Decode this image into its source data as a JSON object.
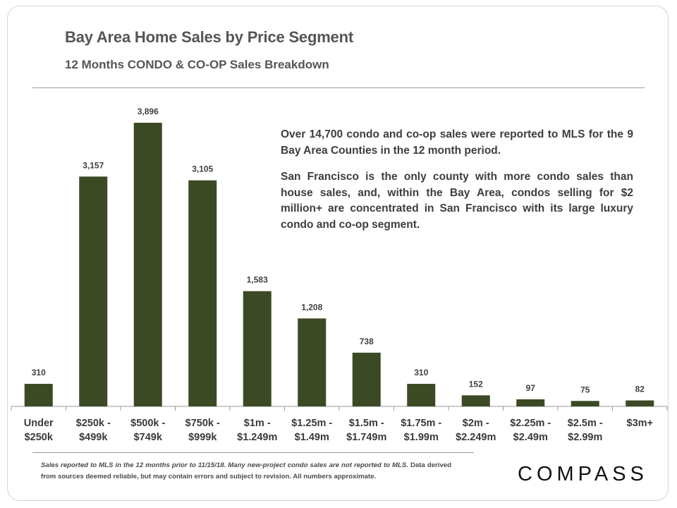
{
  "title": "Bay Area Home Sales by Price Segment",
  "subtitle": "12 Months CONDO & CO-OP Sales Breakdown",
  "annotation": {
    "paragraph1": "Over 14,700 condo and co-op sales were reported to MLS for the 9 Bay Area Counties in the 12 month period.",
    "paragraph2": "San Francisco is the only county with more condo sales than house sales, and, within the Bay Area, condos selling for $2 million+ are concentrated in San Francisco with its large luxury condo and co-op segment."
  },
  "footnote": {
    "italic_part": "Sales reported to MLS in the 12 months prior to 11/15/18. Many new-project condo sales are not reported to MLS.",
    "rest": " Data derived from sources deemed reliable, but may contain errors and subject to revision. All numbers approximate."
  },
  "logo": "COMPASS",
  "colors": {
    "bar": "#3b4a24",
    "axis": "#9a9a9a"
  },
  "chart_data": {
    "type": "bar",
    "title": "Bay Area Home Sales by Price Segment",
    "xlabel": "",
    "ylabel": "",
    "ylim": [
      0,
      4000
    ],
    "grid": false,
    "categories": [
      [
        "Under",
        "$250k"
      ],
      [
        "$250k -",
        "$499k"
      ],
      [
        "$500k -",
        "$749k"
      ],
      [
        "$750k -",
        "$999k"
      ],
      [
        "$1m -",
        "$1.249m"
      ],
      [
        "$1.25m -",
        "$1.49m"
      ],
      [
        "$1.5m -",
        "$1.749m"
      ],
      [
        "$1.75m -",
        "$1.99m"
      ],
      [
        "$2m -",
        "$2.249m"
      ],
      [
        "$2.25m -",
        "$2.49m"
      ],
      [
        "$2.5m -",
        "$2.99m"
      ],
      [
        "$3m+"
      ]
    ],
    "values": [
      310,
      3157,
      3896,
      3105,
      1583,
      1208,
      738,
      310,
      152,
      97,
      75,
      82
    ],
    "labels": [
      "310",
      "3,157",
      "3,896",
      "3,105",
      "1,583",
      "1,208",
      "738",
      "310",
      "152",
      "97",
      "75",
      "82"
    ]
  }
}
